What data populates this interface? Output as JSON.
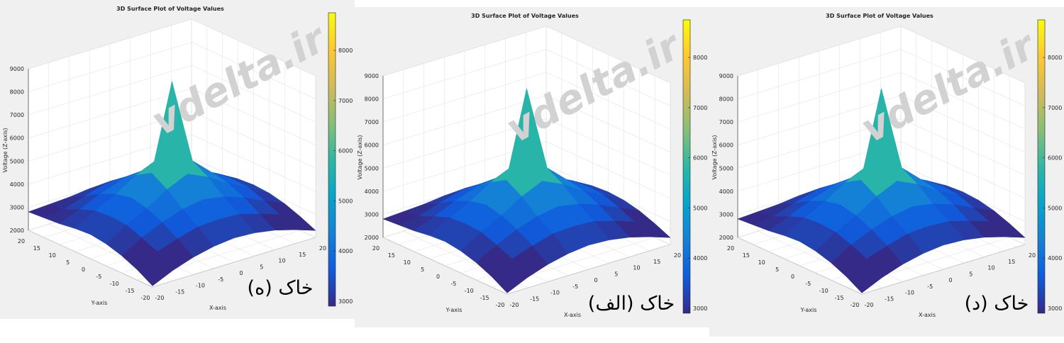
{
  "chart_data": [
    {
      "type": "surface",
      "title": "3D Surface Plot of Voltage Values",
      "xlabel": "X-axis",
      "ylabel": "Y-axis",
      "zlabel": "Voltage (Z-axis)",
      "watermark": "vdelta.ir",
      "annotation": "خاک (ه)",
      "x": [
        -20,
        -15,
        -10,
        -5,
        0,
        5,
        10,
        15,
        20
      ],
      "y": [
        -20,
        -15,
        -10,
        -5,
        0,
        5,
        10,
        15,
        20
      ],
      "z": [
        [
          2050,
          2450,
          2750,
          2950,
          3050,
          3000,
          2850,
          2600,
          2300
        ],
        [
          2450,
          2950,
          3250,
          3500,
          3550,
          3500,
          3250,
          2950,
          2600
        ],
        [
          2750,
          3250,
          3650,
          3950,
          4100,
          3950,
          3650,
          3250,
          2850
        ],
        [
          2950,
          3500,
          3950,
          4500,
          4900,
          4500,
          3950,
          3500,
          3000
        ],
        [
          3050,
          3550,
          4100,
          4900,
          8600,
          4900,
          4100,
          3550,
          3050
        ],
        [
          3000,
          3500,
          3950,
          4500,
          4900,
          4500,
          3950,
          3500,
          3000
        ],
        [
          2900,
          3250,
          3650,
          3950,
          4100,
          3950,
          3650,
          3250,
          2850
        ],
        [
          2850,
          2950,
          3250,
          3500,
          3550,
          3500,
          3250,
          2950,
          2700
        ],
        [
          2800,
          2850,
          2900,
          3000,
          3050,
          3000,
          2850,
          2700,
          2600
        ]
      ],
      "xlim": [
        -20,
        20
      ],
      "xticks": [
        -20,
        -15,
        -10,
        -5,
        0,
        5,
        10,
        15,
        20
      ],
      "ylim": [
        -20,
        20
      ],
      "yticks": [
        -20,
        -15,
        -10,
        -5,
        0,
        5,
        10,
        15,
        20
      ],
      "zlim": [
        2000,
        9000
      ],
      "zticks": [
        2000,
        3000,
        4000,
        5000,
        6000,
        7000,
        8000,
        9000
      ],
      "clim": [
        2900,
        8750
      ],
      "cticks": [
        3000,
        4000,
        5000,
        6000,
        7000,
        8000
      ],
      "colormap": "parula",
      "grid": true
    },
    {
      "type": "surface",
      "title": "3D Surface Plot of Voltage Values",
      "xlabel": "X-axis",
      "ylabel": "Y-axis",
      "zlabel": "Voltage (Z-axis)",
      "watermark": "vdelta.ir",
      "annotation": "خاک (الف)",
      "x": [
        -20,
        -15,
        -10,
        -5,
        0,
        5,
        10,
        15,
        20
      ],
      "y": [
        -20,
        -15,
        -10,
        -5,
        0,
        5,
        10,
        15,
        20
      ],
      "z": [
        [
          2050,
          2450,
          2750,
          2950,
          3050,
          3000,
          2850,
          2600,
          2300
        ],
        [
          2450,
          2950,
          3250,
          3500,
          3550,
          3500,
          3250,
          2950,
          2600
        ],
        [
          2750,
          3250,
          3650,
          3950,
          4100,
          3950,
          3650,
          3250,
          2850
        ],
        [
          2950,
          3500,
          3950,
          4500,
          4900,
          4500,
          3950,
          3500,
          3000
        ],
        [
          3050,
          3550,
          4100,
          4900,
          8600,
          4900,
          4100,
          3550,
          3050
        ],
        [
          3000,
          3500,
          3950,
          4500,
          4900,
          4500,
          3950,
          3500,
          3000
        ],
        [
          2900,
          3250,
          3650,
          3950,
          4100,
          3950,
          3650,
          3250,
          2850
        ],
        [
          2850,
          2950,
          3250,
          3500,
          3550,
          3500,
          3250,
          2950,
          2700
        ],
        [
          2800,
          2850,
          2900,
          3000,
          3050,
          3000,
          2850,
          2700,
          2600
        ]
      ],
      "xlim": [
        -20,
        20
      ],
      "xticks": [
        -20,
        -15,
        -10,
        -5,
        0,
        5,
        10,
        15,
        20
      ],
      "ylim": [
        -20,
        20
      ],
      "yticks": [
        -20,
        -15,
        -10,
        -5,
        0,
        5,
        10,
        15,
        20
      ],
      "zlim": [
        2000,
        9000
      ],
      "zticks": [
        2000,
        3000,
        4000,
        5000,
        6000,
        7000,
        8000,
        9000
      ],
      "clim": [
        2900,
        8750
      ],
      "cticks": [
        3000,
        4000,
        5000,
        6000,
        7000,
        8000
      ],
      "colormap": "parula",
      "grid": true
    },
    {
      "type": "surface",
      "title": "3D Surface Plot of Voltage Values",
      "xlabel": "X-axis",
      "ylabel": "Y-axis",
      "zlabel": "Voltage (Z-axis)",
      "watermark": "vdelta.ir",
      "annotation": "خاک (د)",
      "x": [
        -20,
        -15,
        -10,
        -5,
        0,
        5,
        10,
        15,
        20
      ],
      "y": [
        -20,
        -15,
        -10,
        -5,
        0,
        5,
        10,
        15,
        20
      ],
      "z": [
        [
          2050,
          2450,
          2750,
          2950,
          3050,
          3000,
          2850,
          2600,
          2300
        ],
        [
          2450,
          2950,
          3250,
          3500,
          3550,
          3500,
          3250,
          2950,
          2600
        ],
        [
          2750,
          3250,
          3650,
          3950,
          4100,
          3950,
          3650,
          3250,
          2850
        ],
        [
          2950,
          3500,
          3950,
          4500,
          4900,
          4500,
          3950,
          3500,
          3000
        ],
        [
          3050,
          3550,
          4100,
          4900,
          8600,
          4900,
          4100,
          3550,
          3050
        ],
        [
          3000,
          3500,
          3950,
          4500,
          4900,
          4500,
          3950,
          3500,
          3000
        ],
        [
          2900,
          3250,
          3650,
          3950,
          4100,
          3950,
          3650,
          3250,
          2850
        ],
        [
          2850,
          2950,
          3250,
          3500,
          3550,
          3500,
          3250,
          2950,
          2700
        ],
        [
          2800,
          2850,
          2900,
          3000,
          3050,
          3000,
          2850,
          2700,
          2600
        ]
      ],
      "xlim": [
        -20,
        20
      ],
      "xticks": [
        -20,
        -15,
        -10,
        -5,
        0,
        5,
        10,
        15,
        20
      ],
      "ylim": [
        -20,
        20
      ],
      "yticks": [
        -20,
        -15,
        -10,
        -5,
        0,
        5,
        10,
        15,
        20
      ],
      "zlim": [
        2000,
        9000
      ],
      "zticks": [
        2000,
        3000,
        4000,
        5000,
        6000,
        7000,
        8000,
        9000
      ],
      "clim": [
        2900,
        8750
      ],
      "cticks": [
        3000,
        4000,
        5000,
        6000,
        7000,
        8000
      ],
      "colormap": "parula",
      "grid": true
    }
  ]
}
